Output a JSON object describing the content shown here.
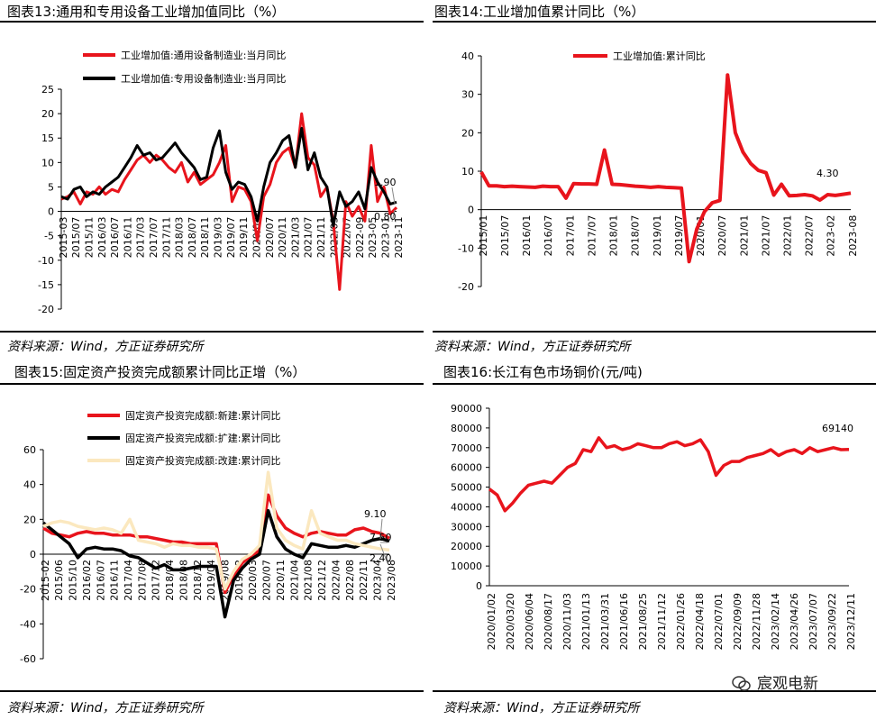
{
  "panels": {
    "p13": {
      "title": "图表13:通用和专用设备工业增加值同比（%）",
      "source": "资料来源：Wind，方正证券研究所"
    },
    "p14": {
      "title": "图表14:工业增加值累计同比（%）",
      "source": "资料来源：Wind，方正证券研究所"
    },
    "p15": {
      "title": "图表15:固定资产投资完成额累计同比正增（%）",
      "source": "资料来源：Wind，方正证券研究所"
    },
    "p16": {
      "title": "图表16:长江有色市场铜价(元/吨)",
      "source": "资料来源：Wind，方正证券研究所"
    }
  },
  "watermark": {
    "text": "宸观电新"
  },
  "chart_data": [
    {
      "id": "c13",
      "type": "line",
      "ylim": [
        -20,
        25
      ],
      "yticks": [
        -20,
        -15,
        -10,
        -5,
        0,
        5,
        10,
        15,
        20,
        25
      ],
      "xtick_labels": [
        "2015-03",
        "2015/07",
        "2015/11",
        "2016/03",
        "2016/07",
        "2016/11",
        "2017/03",
        "2017/07",
        "2017/11",
        "2018/03",
        "2018/07",
        "2018/11",
        "2019/03",
        "2019/07",
        "2019/11",
        "2020/03",
        "2020/07",
        "2020/11",
        "2021/03",
        "2021/07",
        "2021/11",
        "2022/03",
        "2022/07",
        "2022-09",
        "2023-05",
        "2023-01",
        "2023-11"
      ],
      "legend_position": "top-left",
      "series": [
        {
          "name": "工业增加值:通用设备制造业:当月同比",
          "color": "#e8141c",
          "values": [
            2.5,
            3.0,
            4.0,
            1.5,
            4.0,
            3.5,
            5.0,
            3.5,
            4.5,
            4.0,
            6.5,
            8.5,
            10.5,
            11.5,
            10.0,
            11.5,
            10.5,
            9.0,
            8.0,
            10.0,
            6.0,
            8.0,
            5.5,
            6.5,
            7.5,
            10.0,
            13.5,
            2.0,
            5.0,
            4.5,
            2.0,
            -6.0,
            3.0,
            5.5,
            10.0,
            12.0,
            13.0,
            9.0,
            20.0,
            11.0,
            9.5,
            3.0,
            5.0,
            -2.0,
            -16.0,
            2.0,
            -1.0,
            1.0,
            -2.0,
            13.5,
            2.0,
            5.0,
            -0.5,
            0.8
          ]
        },
        {
          "name": "工业增加值:专用设备制造业:当月同比",
          "color": "#000000",
          "values": [
            3.0,
            2.5,
            4.5,
            5.0,
            3.0,
            4.0,
            3.5,
            5.0,
            6.0,
            7.0,
            9.0,
            11.0,
            13.5,
            11.5,
            12.0,
            10.5,
            11.0,
            12.5,
            14.0,
            12.0,
            10.5,
            9.0,
            6.5,
            7.0,
            13.0,
            16.5,
            8.0,
            4.5,
            6.0,
            5.5,
            3.0,
            -2.0,
            5.0,
            10.0,
            12.0,
            14.5,
            15.5,
            9.0,
            17.0,
            8.5,
            12.0,
            7.0,
            5.0,
            -3.0,
            4.0,
            1.0,
            2.0,
            4.0,
            0.5,
            9.0,
            6.0,
            4.0,
            1.5,
            1.9
          ]
        }
      ],
      "annotations": [
        "1.90",
        "0.80"
      ]
    },
    {
      "id": "c14",
      "type": "line",
      "ylim": [
        -20,
        40
      ],
      "yticks": [
        -20,
        -10,
        0,
        10,
        20,
        30,
        40
      ],
      "xtick_labels": [
        "2015/01",
        "2015/07",
        "2016/01",
        "2016/07",
        "2017/01",
        "2017/07",
        "2018/01",
        "2018/07",
        "2019/01",
        "2019/07",
        "2020/01",
        "2020/07",
        "2021/01",
        "2021/07",
        "2022/01",
        "2022/07",
        "2023-02",
        "2023-08"
      ],
      "legend_position": "top-center",
      "series": [
        {
          "name": "工业增加值:累计同比",
          "color": "#e8141c",
          "values": [
            9.8,
            6.2,
            6.2,
            6.0,
            6.1,
            6.0,
            5.9,
            5.8,
            6.1,
            6.0,
            6.0,
            3.0,
            6.8,
            6.7,
            6.7,
            6.6,
            15.5,
            6.6,
            6.5,
            6.3,
            6.1,
            6.0,
            5.8,
            6.0,
            5.8,
            5.7,
            5.6,
            -13.5,
            -5.0,
            -0.5,
            1.8,
            2.4,
            35.0,
            20.0,
            15.0,
            12.0,
            10.2,
            9.6,
            3.8,
            6.6,
            3.6,
            3.7,
            3.9,
            3.6,
            2.5,
            3.9,
            3.7,
            4.0,
            4.3
          ]
        }
      ],
      "annotations": [
        "4.30"
      ]
    },
    {
      "id": "c15",
      "type": "line",
      "ylim": [
        -60,
        60
      ],
      "yticks": [
        -60,
        -40,
        -20,
        0,
        20,
        40,
        60
      ],
      "xtick_labels": [
        "2015-02",
        "2015/06",
        "2015/10",
        "2016/02",
        "2016/07",
        "2016/11",
        "2017/04",
        "2017/08",
        "2017/12",
        "2018/04",
        "2018/08",
        "2018/12",
        "2019/04",
        "2019/08",
        "2019/12",
        "2020/03",
        "2020/07",
        "2020/11",
        "2021/04",
        "2021/08",
        "2021/12",
        "2022/04",
        "2022/08",
        "2022/11",
        "2023/04",
        "2023/08"
      ],
      "legend_position": "top-left",
      "series": [
        {
          "name": "固定资产投资完成额:新建:累计同比",
          "color": "#e8141c",
          "values": [
            15,
            12,
            11,
            10,
            12,
            13,
            12,
            12,
            11,
            11,
            11,
            10,
            10,
            9,
            8,
            7,
            7,
            6,
            6,
            6,
            6,
            -22,
            -12,
            -5,
            -1,
            2,
            34,
            22,
            15,
            12,
            10,
            12,
            13,
            12,
            11,
            11,
            14,
            15,
            13,
            12,
            9.1
          ]
        },
        {
          "name": "固定资产投资完成额:扩建:累计同比",
          "color": "#000000",
          "values": [
            18,
            14,
            10,
            6,
            -2,
            3,
            4,
            3,
            3,
            2,
            -1,
            -2,
            -5,
            -8,
            -6,
            -9,
            -9,
            -8,
            -7,
            -7,
            -7,
            -36,
            -15,
            -8,
            -3,
            0,
            25,
            10,
            3,
            0,
            -2,
            6,
            5,
            4,
            4,
            5,
            4,
            6,
            8,
            9,
            7.5
          ]
        },
        {
          "name": "固定资产投资完成额:改建:累计同比",
          "color": "#fbe8bf",
          "values": [
            16,
            18,
            19,
            18,
            16,
            15,
            14,
            15,
            14,
            12,
            20,
            8,
            7,
            6,
            4,
            6,
            5,
            5,
            4,
            4,
            3,
            -20,
            -10,
            -3,
            0,
            5,
            47,
            15,
            8,
            5,
            3,
            25,
            12,
            10,
            8,
            8,
            6,
            5,
            4,
            3,
            2.4
          ]
        }
      ],
      "annotations": [
        "9.10",
        "7.50",
        "2.40"
      ]
    },
    {
      "id": "c16",
      "type": "line",
      "ylim": [
        0,
        90000
      ],
      "yticks": [
        0,
        10000,
        20000,
        30000,
        40000,
        50000,
        60000,
        70000,
        80000,
        90000
      ],
      "xtick_labels": [
        "2020/01/02",
        "2020/03/20",
        "2020/06/04",
        "2020/08/17",
        "2020/11/03",
        "2021/01/13",
        "2021/03/31",
        "2021/06/16",
        "2021/08/25",
        "2021/11/12",
        "2022/01/26",
        "2022/04/18",
        "2022/07/01",
        "2022/09/09",
        "2022/11/28",
        "2023/02/14",
        "2023/04/26",
        "2023/07/07",
        "2023/09/22",
        "2023/12/11"
      ],
      "legend_position": "none",
      "series": [
        {
          "name": "",
          "color": "#e8141c",
          "values": [
            49000,
            46000,
            38000,
            42000,
            47000,
            51000,
            52000,
            53000,
            52000,
            56000,
            60000,
            62000,
            69000,
            68000,
            75000,
            70000,
            71000,
            69000,
            70000,
            72000,
            71000,
            70000,
            70000,
            72000,
            73000,
            71000,
            72000,
            74000,
            68000,
            56000,
            61000,
            63000,
            63000,
            65000,
            66000,
            67000,
            69000,
            66000,
            68000,
            69000,
            67000,
            70000,
            68000,
            69000,
            70000,
            69000,
            69140
          ]
        }
      ],
      "annotations": [
        "69140"
      ]
    }
  ]
}
